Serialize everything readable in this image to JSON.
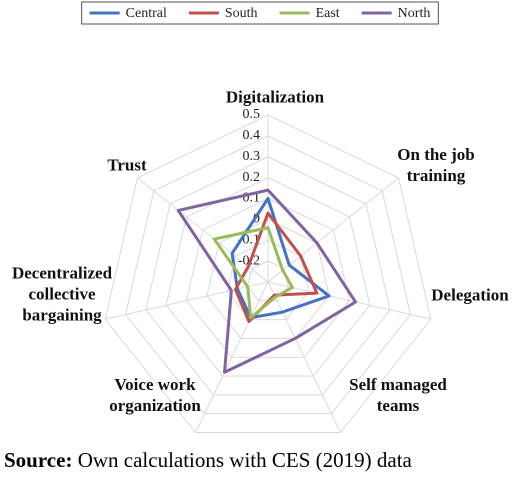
{
  "chart_data": {
    "type": "radar",
    "categories": [
      "Digitalization",
      "On the job training",
      "Delegation",
      "Self managed teams",
      "Voice work organization",
      "Decentralized collective bargaining",
      "Trust"
    ],
    "series": [
      {
        "name": "Central",
        "color": "#4472c4",
        "values": [
          0.1,
          -0.17,
          0.0,
          -0.14,
          -0.11,
          -0.15,
          -0.08
        ]
      },
      {
        "name": "South",
        "color": "#c0504d",
        "values": [
          0.03,
          -0.1,
          -0.06,
          -0.23,
          -0.09,
          -0.14,
          -0.18
        ]
      },
      {
        "name": "East",
        "color": "#9bbb59",
        "values": [
          -0.04,
          -0.21,
          -0.18,
          -0.22,
          -0.11,
          -0.2,
          0.03
        ]
      },
      {
        "name": "North",
        "color": "#8064a2",
        "values": [
          0.14,
          0.0,
          0.13,
          0.0,
          0.18,
          -0.12,
          0.25
        ]
      }
    ],
    "ylim": [
      -0.3,
      0.5
    ],
    "yticks": [
      -0.2,
      -0.1,
      0,
      0.1,
      0.2,
      0.3,
      0.4,
      0.5
    ],
    "grid": true,
    "legend": "top"
  },
  "footer": {
    "label": "Source:",
    "text": "Own calculations with CES (2019) data"
  }
}
